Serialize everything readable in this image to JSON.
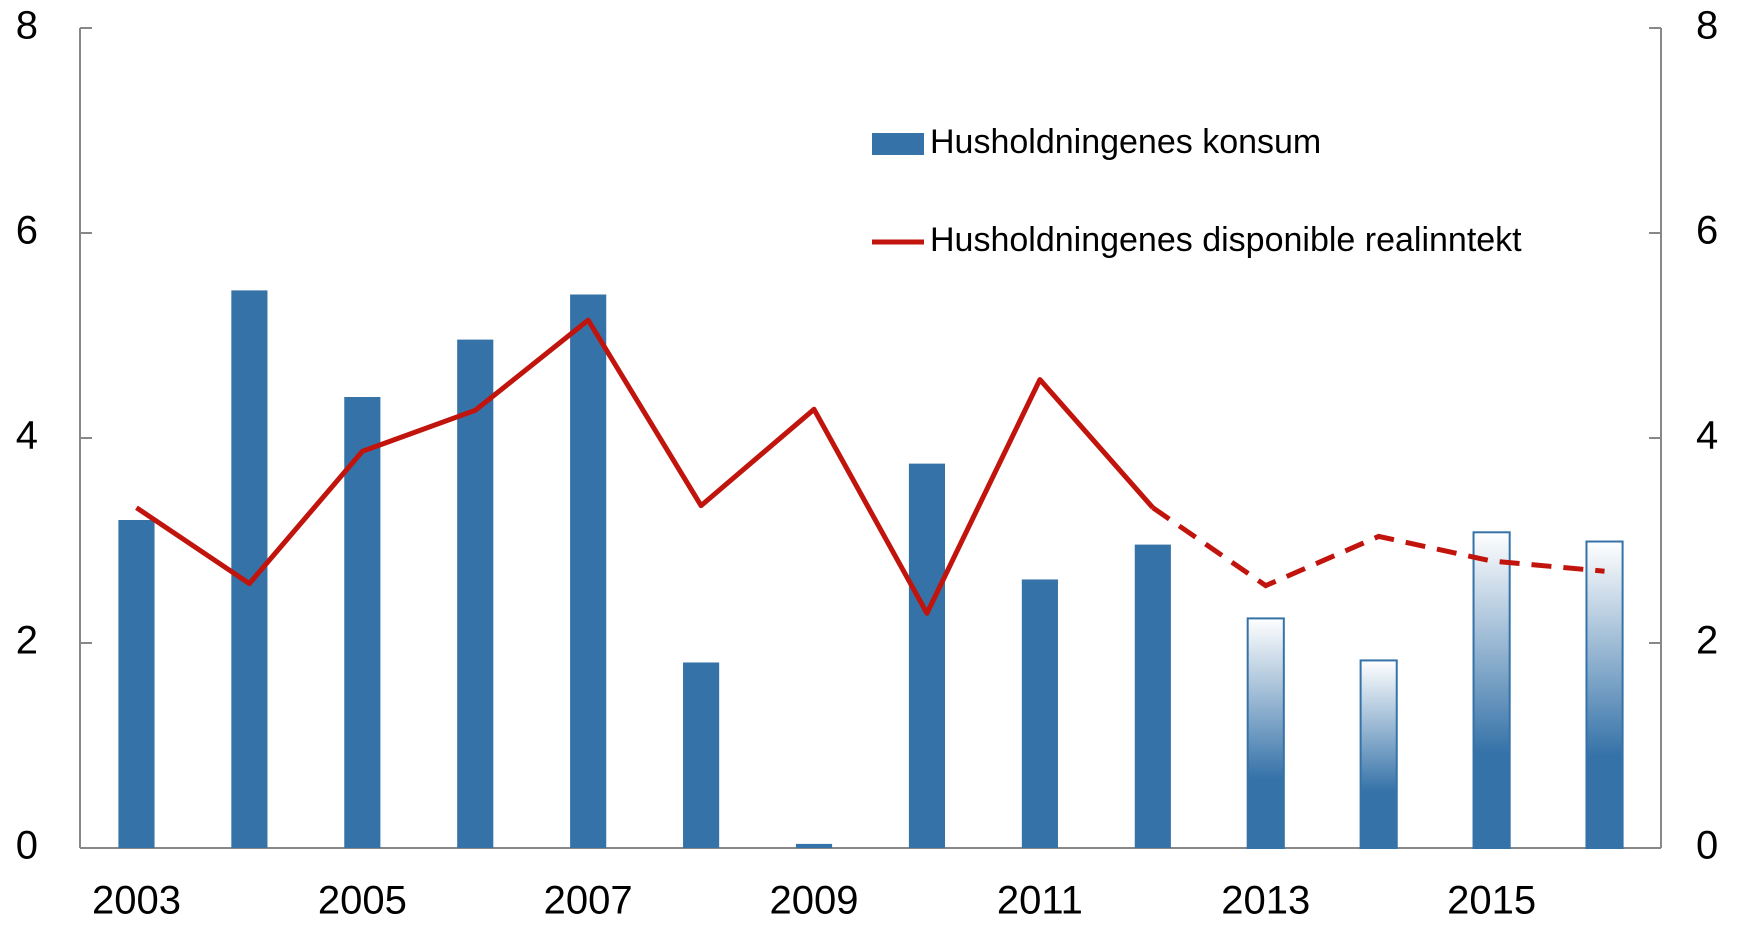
{
  "chart_data": {
    "type": "bar-line",
    "x": [
      2003,
      2004,
      2005,
      2006,
      2007,
      2008,
      2009,
      2010,
      2011,
      2012,
      2013,
      2014,
      2015,
      2016
    ],
    "xlim": [
      2002.5,
      2016.5
    ],
    "xticks": [
      2003,
      2005,
      2007,
      2009,
      2011,
      2013,
      2015
    ],
    "series": [
      {
        "name": "Husholdningenes konsum",
        "type": "bar",
        "color": "#3572a8",
        "values": [
          3.2,
          5.44,
          4.4,
          4.96,
          5.4,
          1.81,
          0.04,
          3.75,
          2.62,
          2.96,
          2.24,
          1.83,
          3.08,
          2.99
        ]
      },
      {
        "name": "Husholdningenes disponible realinntekt",
        "type": "line",
        "color": "#c0140c",
        "values": [
          3.32,
          2.58,
          3.87,
          4.27,
          5.15,
          3.34,
          4.28,
          2.29,
          4.57,
          3.32,
          2.56,
          3.04,
          2.8,
          2.7
        ]
      }
    ],
    "forecast_from": 2012,
    "ylim": [
      0,
      8
    ],
    "yticks": [
      0,
      2,
      4,
      6,
      8
    ],
    "y2lim": [
      0,
      8
    ],
    "y2ticks": [
      0,
      2,
      4,
      6,
      8
    ]
  }
}
